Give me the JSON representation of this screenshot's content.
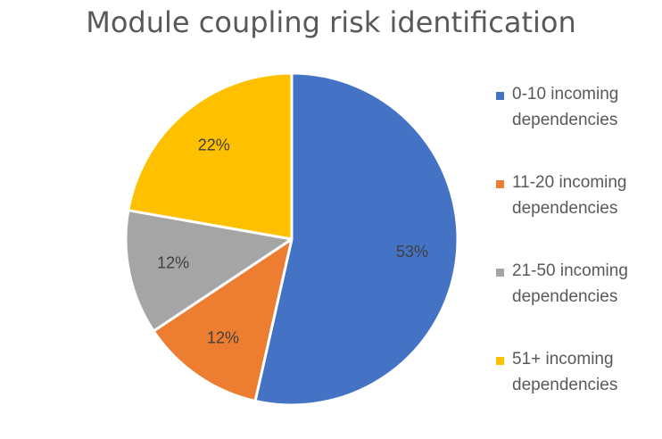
{
  "chart_data": {
    "type": "pie",
    "title": "Module coupling risk identification",
    "categories": [
      "0-10 incoming dependencies",
      "11-20 incoming dependencies",
      "21-50 incoming dependencies",
      "51+ incoming dependencies"
    ],
    "values": [
      53,
      12,
      12,
      22
    ],
    "data_labels": [
      "53%",
      "12%",
      "12%",
      "22%"
    ],
    "colors": [
      "#4472C4",
      "#ED7D31",
      "#A5A5A5",
      "#FFC000"
    ],
    "legend_position": "right"
  }
}
